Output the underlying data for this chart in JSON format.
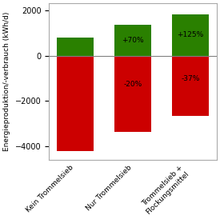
{
  "categories": [
    "Kein Trommelsieb",
    "Nur Trommelsieb",
    "Trommelsieb +\nFlockungsmittel"
  ],
  "positive_values": [
    800,
    1360,
    1800
  ],
  "negative_values": [
    -4200,
    -3360,
    -2646
  ],
  "positive_labels": [
    "",
    "+70%",
    "+125%"
  ],
  "negative_labels": [
    "",
    "-20%",
    "-37%"
  ],
  "bar_color_pos": "#2a8000",
  "bar_color_neg": "#cc0000",
  "ylabel": "Energieproduktion/-verbrauch (kWh/d)",
  "ylim": [
    -4600,
    2300
  ],
  "yticks": [
    -4000,
    -2000,
    0,
    2000
  ],
  "background_color": "#ffffff",
  "plot_bg": "#ffffff",
  "label_fontsize": 6.5,
  "tick_fontsize": 7,
  "ylabel_fontsize": 6.5,
  "bar_width": 0.65
}
